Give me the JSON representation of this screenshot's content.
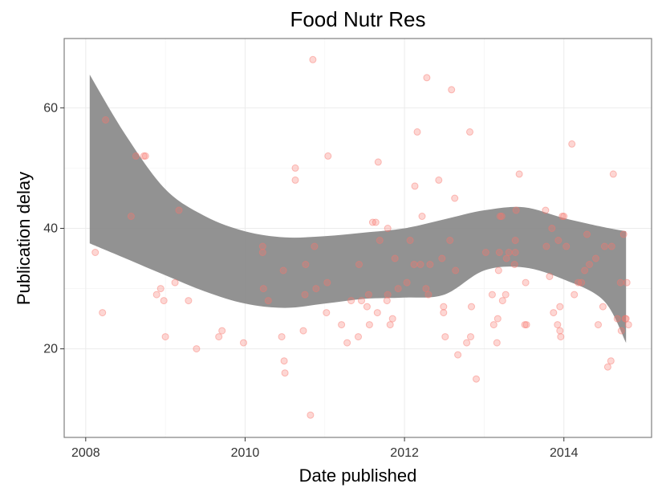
{
  "chart_data": {
    "type": "scatter",
    "title": "Food Nutr Res",
    "xlabel": "Date published",
    "ylabel": "Publication delay",
    "xlim": [
      2007.73,
      2015.1
    ],
    "ylim": [
      5.3,
      71.5
    ],
    "xticks": [
      2008,
      2010,
      2012,
      2014
    ],
    "yticks": [
      20,
      40,
      60
    ],
    "grid": true,
    "legend": "none",
    "point_color": "#f8766d",
    "band_color": "#8c8c8c",
    "points": [
      [
        2008.12,
        36
      ],
      [
        2008.21,
        26
      ],
      [
        2008.25,
        58
      ],
      [
        2008.57,
        42
      ],
      [
        2008.63,
        52
      ],
      [
        2008.73,
        52
      ],
      [
        2008.75,
        52
      ],
      [
        2008.89,
        29
      ],
      [
        2008.94,
        30
      ],
      [
        2008.98,
        28
      ],
      [
        2009.0,
        22
      ],
      [
        2009.12,
        31
      ],
      [
        2009.17,
        43
      ],
      [
        2009.29,
        28
      ],
      [
        2009.39,
        20
      ],
      [
        2009.67,
        22
      ],
      [
        2009.71,
        23
      ],
      [
        2009.98,
        21
      ],
      [
        2010.22,
        37
      ],
      [
        2010.22,
        36
      ],
      [
        2010.23,
        30
      ],
      [
        2010.29,
        28
      ],
      [
        2010.46,
        22
      ],
      [
        2010.48,
        33
      ],
      [
        2010.49,
        18
      ],
      [
        2010.5,
        16
      ],
      [
        2010.63,
        50
      ],
      [
        2010.63,
        48
      ],
      [
        2010.73,
        23
      ],
      [
        2010.75,
        29
      ],
      [
        2010.76,
        34
      ],
      [
        2010.82,
        9
      ],
      [
        2010.85,
        68
      ],
      [
        2010.87,
        37
      ],
      [
        2010.89,
        30
      ],
      [
        2011.02,
        26
      ],
      [
        2011.03,
        31
      ],
      [
        2011.04,
        52
      ],
      [
        2011.21,
        24
      ],
      [
        2011.28,
        21
      ],
      [
        2011.33,
        28
      ],
      [
        2011.42,
        22
      ],
      [
        2011.43,
        34
      ],
      [
        2011.46,
        28
      ],
      [
        2011.53,
        27
      ],
      [
        2011.55,
        29
      ],
      [
        2011.56,
        24
      ],
      [
        2011.6,
        41
      ],
      [
        2011.64,
        41
      ],
      [
        2011.66,
        26
      ],
      [
        2011.67,
        51
      ],
      [
        2011.69,
        38
      ],
      [
        2011.78,
        28
      ],
      [
        2011.79,
        29
      ],
      [
        2011.79,
        40
      ],
      [
        2011.82,
        24
      ],
      [
        2011.85,
        25
      ],
      [
        2011.88,
        35
      ],
      [
        2011.92,
        30
      ],
      [
        2012.03,
        31
      ],
      [
        2012.07,
        38
      ],
      [
        2012.12,
        34
      ],
      [
        2012.13,
        47
      ],
      [
        2012.16,
        56
      ],
      [
        2012.2,
        34
      ],
      [
        2012.22,
        42
      ],
      [
        2012.27,
        30
      ],
      [
        2012.28,
        65
      ],
      [
        2012.3,
        29
      ],
      [
        2012.32,
        34
      ],
      [
        2012.43,
        48
      ],
      [
        2012.47,
        35
      ],
      [
        2012.49,
        27
      ],
      [
        2012.49,
        26
      ],
      [
        2012.51,
        22
      ],
      [
        2012.57,
        38
      ],
      [
        2012.59,
        63
      ],
      [
        2012.63,
        45
      ],
      [
        2012.64,
        33
      ],
      [
        2012.67,
        19
      ],
      [
        2012.78,
        21
      ],
      [
        2012.82,
        56
      ],
      [
        2012.83,
        22
      ],
      [
        2012.84,
        27
      ],
      [
        2012.9,
        15
      ],
      [
        2013.02,
        36
      ],
      [
        2013.1,
        29
      ],
      [
        2013.12,
        24
      ],
      [
        2013.16,
        21
      ],
      [
        2013.17,
        25
      ],
      [
        2013.18,
        33
      ],
      [
        2013.19,
        36
      ],
      [
        2013.2,
        42
      ],
      [
        2013.22,
        42
      ],
      [
        2013.23,
        28
      ],
      [
        2013.27,
        29
      ],
      [
        2013.28,
        35
      ],
      [
        2013.31,
        36
      ],
      [
        2013.38,
        34
      ],
      [
        2013.39,
        38
      ],
      [
        2013.39,
        36
      ],
      [
        2013.4,
        43
      ],
      [
        2013.44,
        49
      ],
      [
        2013.51,
        24
      ],
      [
        2013.52,
        31
      ],
      [
        2013.53,
        24
      ],
      [
        2013.77,
        43
      ],
      [
        2013.78,
        37
      ],
      [
        2013.82,
        32
      ],
      [
        2013.85,
        40
      ],
      [
        2013.87,
        26
      ],
      [
        2013.92,
        24
      ],
      [
        2013.93,
        38
      ],
      [
        2013.95,
        27
      ],
      [
        2013.95,
        23
      ],
      [
        2013.96,
        22
      ],
      [
        2013.98,
        42
      ],
      [
        2014.0,
        42
      ],
      [
        2014.03,
        37
      ],
      [
        2014.1,
        54
      ],
      [
        2014.13,
        29
      ],
      [
        2014.18,
        31
      ],
      [
        2014.22,
        31
      ],
      [
        2014.26,
        33
      ],
      [
        2014.29,
        39
      ],
      [
        2014.32,
        34
      ],
      [
        2014.4,
        35
      ],
      [
        2014.43,
        24
      ],
      [
        2014.49,
        27
      ],
      [
        2014.51,
        37
      ],
      [
        2014.55,
        17
      ],
      [
        2014.59,
        18
      ],
      [
        2014.6,
        37
      ],
      [
        2014.62,
        49
      ],
      [
        2014.67,
        25
      ],
      [
        2014.71,
        31
      ],
      [
        2014.72,
        23
      ],
      [
        2014.75,
        39
      ],
      [
        2014.77,
        25
      ],
      [
        2014.78,
        25
      ],
      [
        2014.79,
        31
      ],
      [
        2014.81,
        24
      ]
    ],
    "band": {
      "x": [
        2008.05,
        2008.5,
        2009.0,
        2009.5,
        2010.0,
        2010.5,
        2011.0,
        2011.5,
        2012.0,
        2012.5,
        2013.0,
        2013.5,
        2014.0,
        2014.5,
        2014.78
      ],
      "upper": [
        65.5,
        55.5,
        46.5,
        42.0,
        39.5,
        38.5,
        38.7,
        39.3,
        40.0,
        41.5,
        43.0,
        43.5,
        41.7,
        40.2,
        39.5
      ],
      "lower": [
        37.5,
        35.0,
        32.2,
        29.5,
        27.5,
        26.8,
        27.5,
        28.3,
        28.5,
        29.0,
        33.0,
        33.5,
        31.5,
        28.0,
        21.0
      ]
    }
  }
}
